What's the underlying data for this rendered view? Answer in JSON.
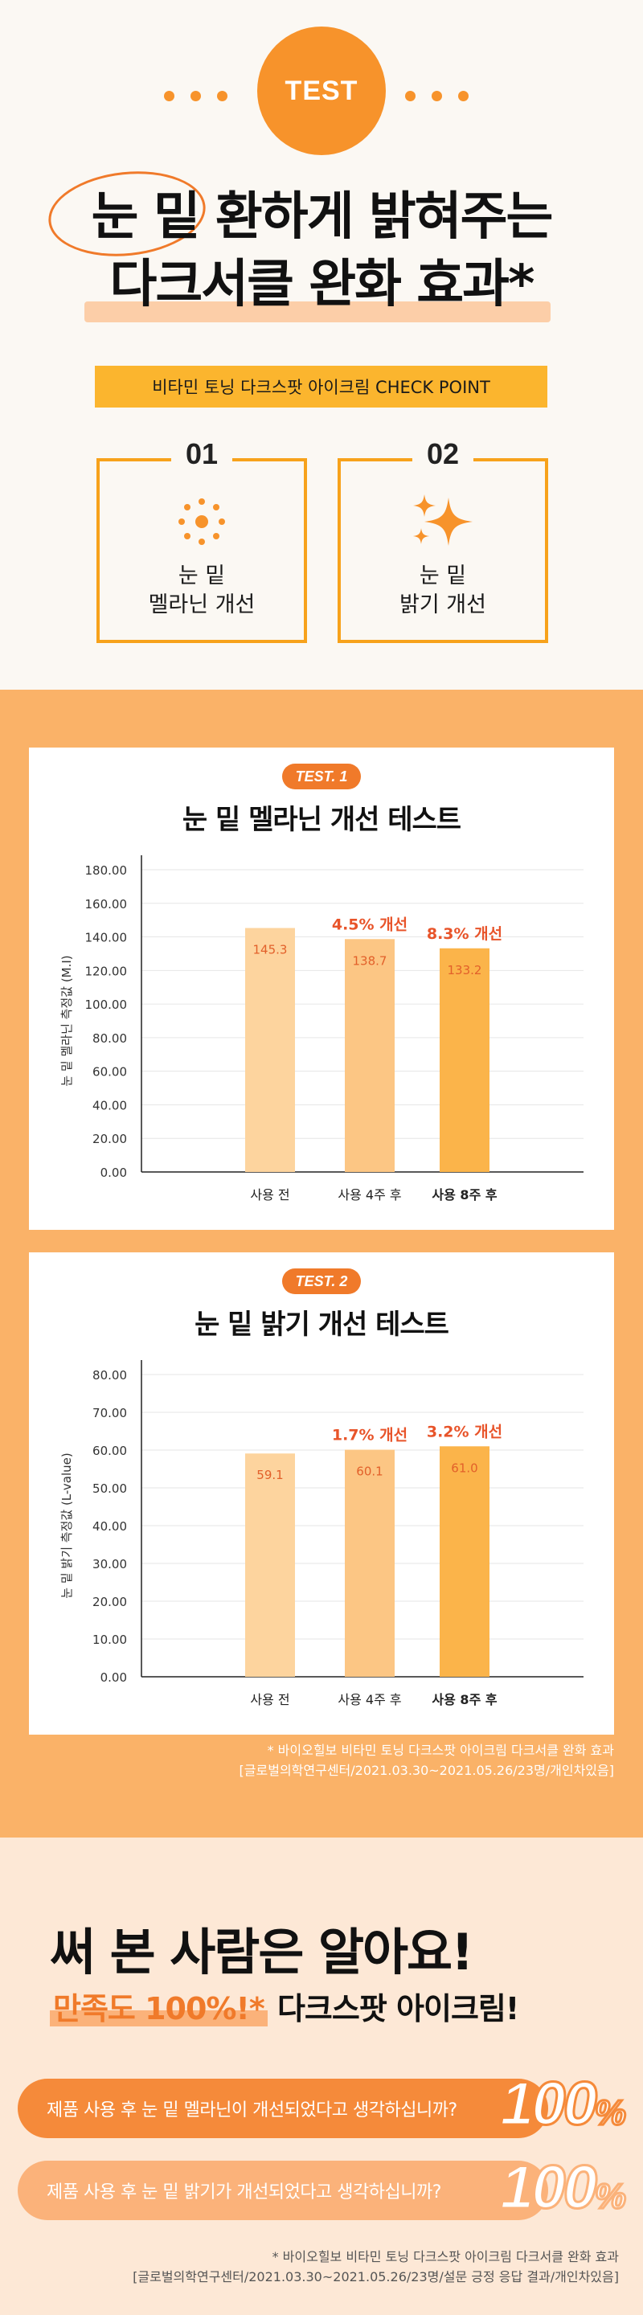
{
  "hero": {
    "badge": "TEST",
    "headline_line1": "눈 밑 환하게 밝혀주는",
    "headline_line2": "다크서클 완화 효과*",
    "checkpoint_bar": "비타민 토닝 다크스팟 아이크림 CHECK POINT"
  },
  "checkpoints": [
    {
      "num": "01",
      "icon": "dotted-sun-icon",
      "line1": "눈 밑",
      "line2": "멜라닌 개선"
    },
    {
      "num": "02",
      "icon": "sparkle-icon",
      "line1": "눈 밑",
      "line2": "밝기 개선"
    }
  ],
  "colors": {
    "accent": "#f07a2a",
    "bar_light": "#fdd49e",
    "bar_mid": "#fcc684",
    "bar_strong": "#fbb44a",
    "section_orange": "#fab268"
  },
  "chart_data": [
    {
      "type": "bar",
      "badge": "TEST. 1",
      "title": "눈 밑 멜라닌 개선 테스트",
      "ylabel": "눈 밑 멜라닌 측정값 (M.I)",
      "ylim": [
        0,
        180
      ],
      "yticks": [
        "0.00",
        "20.00",
        "40.00",
        "60.00",
        "80.00",
        "100.00",
        "120.00",
        "140.00",
        "160.00",
        "180.00"
      ],
      "categories": [
        "사용 전",
        "사용 4주 후",
        "사용 8주 후"
      ],
      "values": [
        145.3,
        138.7,
        133.2
      ],
      "value_labels": [
        "145.3",
        "138.7",
        "133.2"
      ],
      "improvements": [
        "",
        "4.5% 개선",
        "8.3% 개선"
      ],
      "grid": true
    },
    {
      "type": "bar",
      "badge": "TEST. 2",
      "title": "눈 밑 밝기 개선 테스트",
      "ylabel": "눈 밑 밝기 측정값 (L-value)",
      "ylim": [
        0,
        80
      ],
      "yticks": [
        "0.00",
        "10.00",
        "20.00",
        "30.00",
        "40.00",
        "50.00",
        "60.00",
        "70.00",
        "80.00"
      ],
      "categories": [
        "사용 전",
        "사용 4주 후",
        "사용 8주 후"
      ],
      "values": [
        59.1,
        60.1,
        61.0
      ],
      "value_labels": [
        "59.1",
        "60.1",
        "61.0"
      ],
      "improvements": [
        "",
        "1.7% 개선",
        "3.2% 개선"
      ],
      "grid": true
    }
  ],
  "footnote1": {
    "line1": "* 바이오힐보 비타민 토닝 다크스팟 아이크림 다크서클 완화 효과",
    "line2": "[글로벌의학연구센터/2021.03.30~2021.05.26/23명/개인차있음]"
  },
  "satisfaction": {
    "title": "써 본 사람은 알아요!",
    "sub_highlight": "만족도 100%!*",
    "sub_rest": " 다크스팟 아이크림!",
    "questions": [
      {
        "text": "제품 사용 후 눈 밑 멜라닌이 개선되었다고 생각하십니까?",
        "value": "100",
        "unit": "%"
      },
      {
        "text": "제품 사용 후 눈 밑 밝기가 개선되었다고 생각하십니까?",
        "value": "100",
        "unit": "%"
      }
    ]
  },
  "footnote2": {
    "line1": "* 바이오힐보 비타민 토닝 다크스팟 아이크림 다크서클 완화 효과",
    "line2": "[글로벌의학연구센터/2021.03.30~2021.05.26/23명/설문 긍정 응답 결과/개인차있음]"
  }
}
